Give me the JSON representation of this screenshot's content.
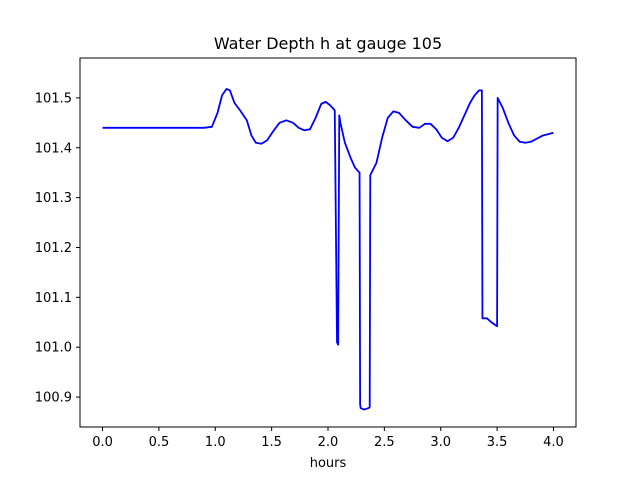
{
  "chart_data": {
    "type": "line",
    "title": "Water Depth h at gauge 105",
    "xlabel": "hours",
    "ylabel": "",
    "xlim": [
      -0.2,
      4.2
    ],
    "ylim": [
      100.84,
      101.58
    ],
    "grid": false,
    "x_ticks": [
      0.0,
      0.5,
      1.0,
      1.5,
      2.0,
      2.5,
      3.0,
      3.5,
      4.0
    ],
    "x_tick_labels": [
      "0.0",
      "0.5",
      "1.0",
      "1.5",
      "2.0",
      "2.5",
      "3.0",
      "3.5",
      "4.0"
    ],
    "y_ticks": [
      100.9,
      101.0,
      101.1,
      101.2,
      101.3,
      101.4,
      101.5
    ],
    "y_tick_labels": [
      "100.9",
      "101.0",
      "101.1",
      "101.2",
      "101.3",
      "101.4",
      "101.5"
    ],
    "series": [
      {
        "color": "#0000ff",
        "x": [
          0.0,
          0.5,
          0.9,
          0.97,
          1.02,
          1.06,
          1.1,
          1.13,
          1.17,
          1.22,
          1.28,
          1.32,
          1.36,
          1.41,
          1.46,
          1.52,
          1.57,
          1.63,
          1.69,
          1.74,
          1.79,
          1.84,
          1.89,
          1.94,
          1.98,
          2.02,
          2.06,
          2.08,
          2.09,
          2.1,
          2.11,
          2.15,
          2.2,
          2.24,
          2.28,
          2.285,
          2.29,
          2.32,
          2.36,
          2.37,
          2.375,
          2.43,
          2.48,
          2.53,
          2.58,
          2.63,
          2.69,
          2.75,
          2.81,
          2.86,
          2.91,
          2.96,
          3.01,
          3.06,
          3.11,
          3.16,
          3.21,
          3.26,
          3.3,
          3.34,
          3.365,
          3.37,
          3.41,
          3.45,
          3.48,
          3.5,
          3.505,
          3.55,
          3.6,
          3.65,
          3.7,
          3.75,
          3.8,
          3.85,
          3.9,
          3.95,
          4.0
        ],
        "y": [
          101.44,
          101.44,
          101.44,
          101.442,
          101.47,
          101.505,
          101.518,
          101.515,
          101.49,
          101.475,
          101.455,
          101.425,
          101.41,
          101.408,
          101.415,
          101.435,
          101.45,
          101.455,
          101.45,
          101.44,
          101.435,
          101.437,
          101.46,
          101.488,
          101.492,
          101.485,
          101.475,
          101.01,
          101.005,
          101.465,
          101.45,
          101.41,
          101.38,
          101.36,
          101.35,
          100.885,
          100.878,
          100.875,
          100.878,
          100.88,
          101.345,
          101.37,
          101.42,
          101.46,
          101.473,
          101.47,
          101.455,
          101.442,
          101.44,
          101.448,
          101.448,
          101.437,
          101.42,
          101.413,
          101.42,
          101.44,
          101.465,
          101.49,
          101.505,
          101.515,
          101.515,
          101.058,
          101.058,
          101.05,
          101.045,
          101.042,
          101.5,
          101.48,
          101.45,
          101.425,
          101.412,
          101.41,
          101.412,
          101.418,
          101.424,
          101.427,
          101.43
        ]
      }
    ]
  }
}
